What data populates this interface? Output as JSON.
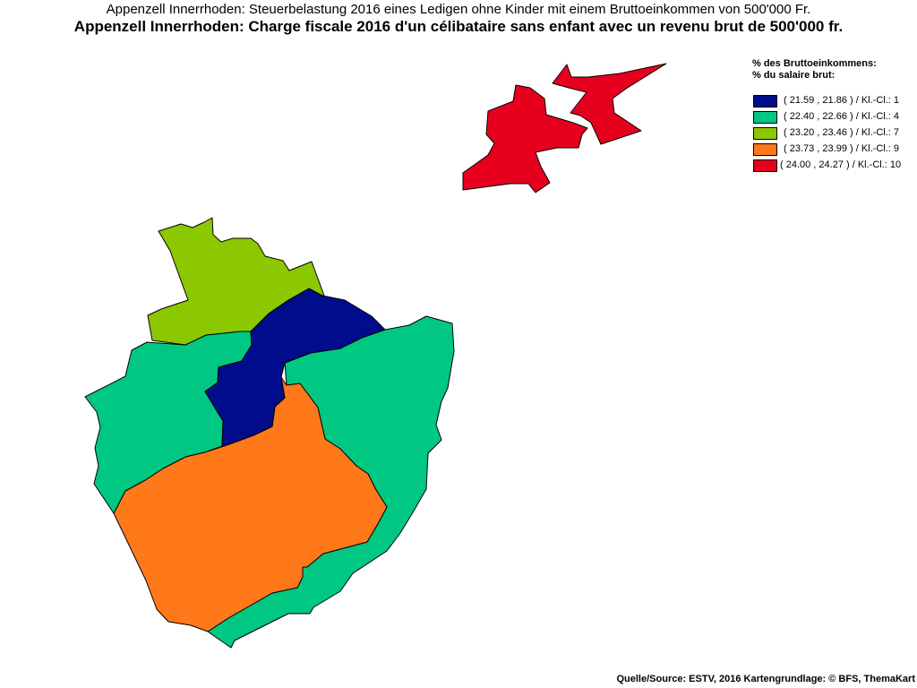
{
  "title_de": "Appenzell Innerrhoden: Steuerbelastung 2016 eines Ledigen ohne Kinder mit einem Bruttoeinkommen von 500'000 Fr.",
  "title_fr": "Appenzell Innerrhoden: Charge fiscale 2016 d'un célibataire sans enfant avec un revenu brut de 500'000 fr.",
  "legend": {
    "title_de": "% des Bruttoeinkommens:",
    "title_fr": "% du salaire brut:",
    "classes": [
      {
        "label": "( 21.59 , 21.86 ) / Kl.-Cl.: 1",
        "color": "#000c8c"
      },
      {
        "label": "( 22.40 , 22.66 ) / Kl.-Cl.: 4",
        "color": "#00c882"
      },
      {
        "label": "( 23.20 , 23.46 ) / Kl.-Cl.: 7",
        "color": "#8cc800"
      },
      {
        "label": "( 23.73 , 23.99 ) / Kl.-Cl.: 9",
        "color": "#ff7819"
      },
      {
        "label": "( 24.00 , 24.27 ) / Kl.-Cl.: 10",
        "color": "#e6001e"
      }
    ]
  },
  "source": "Quelle/Source: ESTV, 2016 Kartengrundlage: © BFS, ThemaKart"
}
